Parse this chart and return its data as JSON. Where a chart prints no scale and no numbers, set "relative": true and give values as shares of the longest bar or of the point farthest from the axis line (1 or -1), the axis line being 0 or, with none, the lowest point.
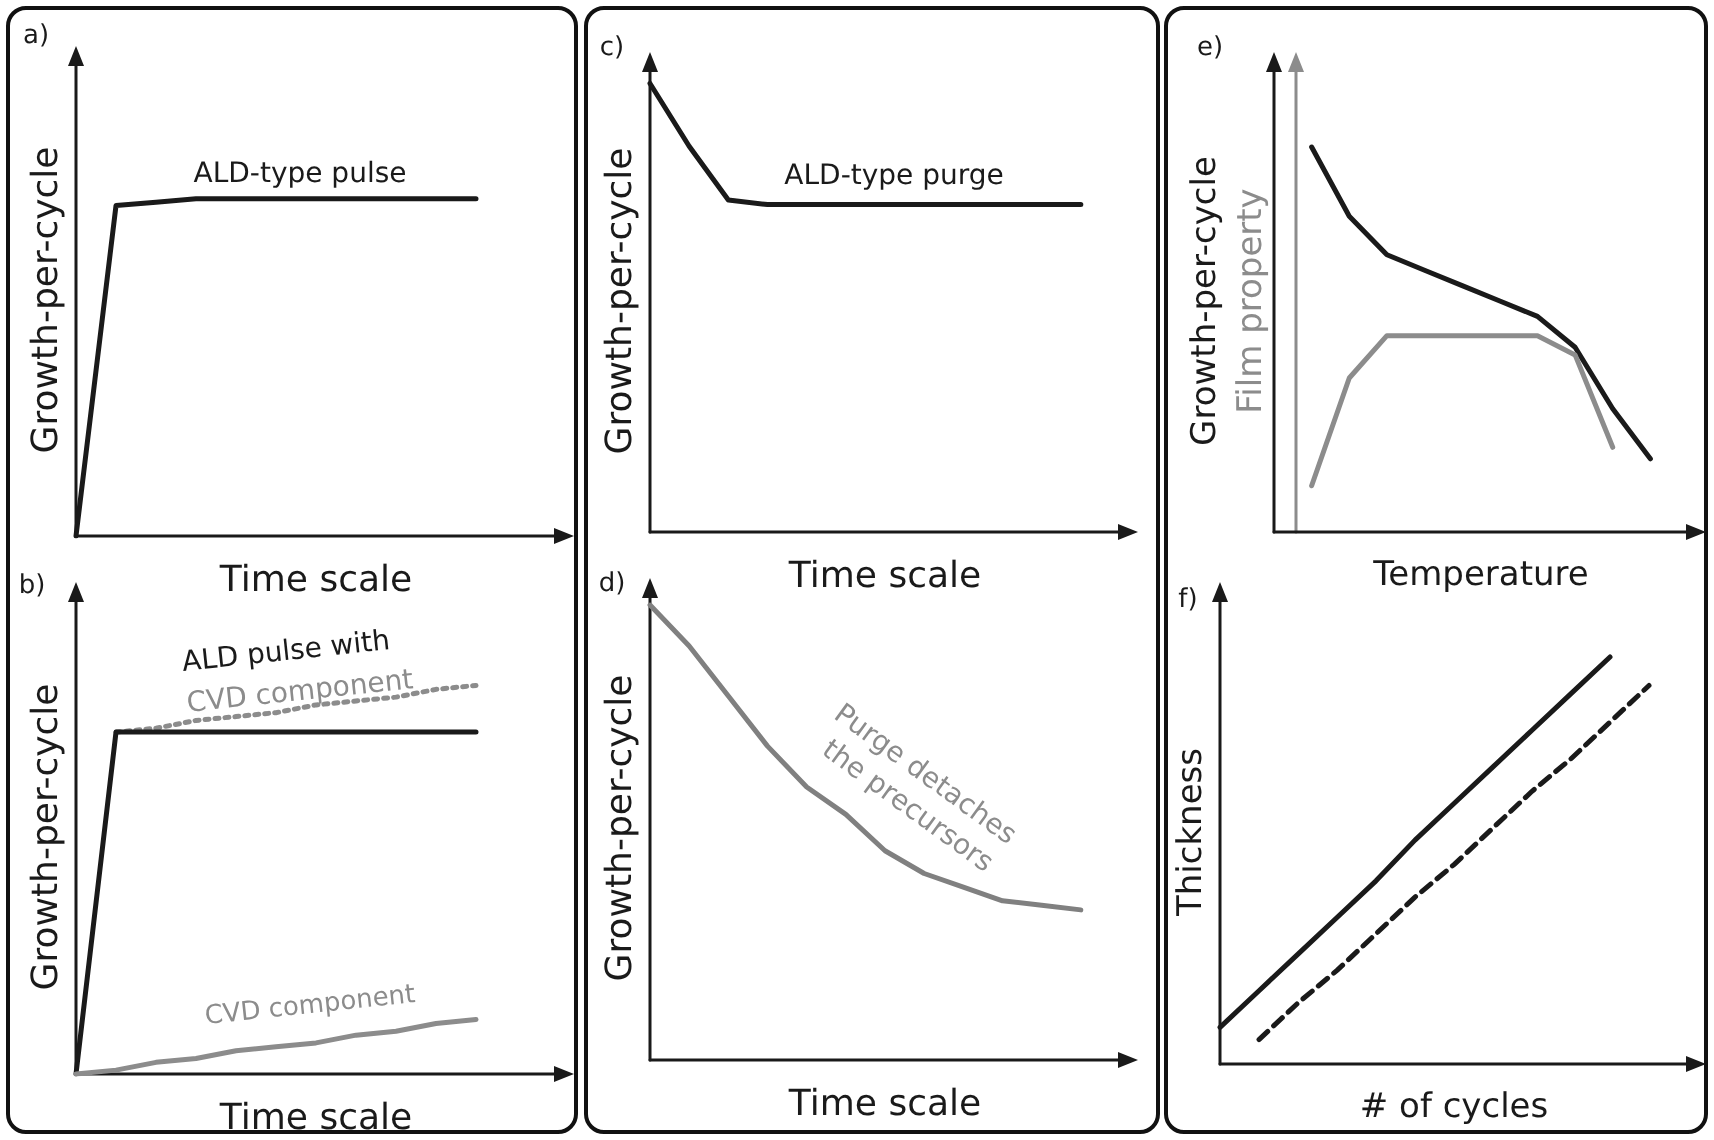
{
  "chart_data": [
    {
      "type": "line",
      "relative": true,
      "xlabel": "Time scale",
      "ylabel": "Growth-per-cycle",
      "marker": "none",
      "annotations": [
        "a)",
        "ALD-type pulse"
      ],
      "categories": [
        null,
        null,
        null,
        null,
        null,
        null,
        null,
        null,
        null,
        null,
        null,
        null,
        null
      ],
      "series": [
        {
          "color": "#1a1a1a",
          "values": [
            0,
            0.98,
            0.99,
            1,
            1,
            1,
            1,
            1,
            1,
            1,
            1,
            null,
            null
          ]
        }
      ]
    },
    {
      "type": "line",
      "relative": true,
      "xlabel": "Time scale",
      "ylabel": "Growth-per-cycle",
      "marker": "none",
      "annotations": [
        "b)",
        "ALD pulse with",
        "CVD component",
        "CVD component"
      ],
      "categories": [
        null,
        null,
        null,
        null,
        null,
        null,
        null,
        null,
        null,
        null,
        null,
        null,
        null
      ],
      "series": [
        {
          "color": "#8c8c8c",
          "line_style": "dotted",
          "values": [
            null,
            0.88,
            0.89,
            0.91,
            0.92,
            0.93,
            0.95,
            0.96,
            0.97,
            0.99,
            1.0,
            null,
            null
          ]
        },
        {
          "color": "#1a1a1a",
          "values": [
            0,
            0.88,
            0.88,
            0.88,
            0.88,
            0.88,
            0.88,
            0.88,
            0.88,
            0.88,
            0.88,
            null,
            null
          ]
        },
        {
          "color": "#8c8c8c",
          "values": [
            0,
            0.01,
            0.03,
            0.04,
            0.06,
            0.07,
            0.08,
            0.1,
            0.11,
            0.13,
            0.14,
            null,
            null
          ]
        }
      ]
    },
    {
      "type": "line",
      "relative": true,
      "xlabel": "Time scale",
      "ylabel": "Growth-per-cycle",
      "marker": "none",
      "annotations": [
        "c)",
        "ALD-type purge"
      ],
      "categories": [
        null,
        null,
        null,
        null,
        null,
        null,
        null,
        null,
        null,
        null,
        null,
        null,
        null
      ],
      "series": [
        {
          "color": "#1a1a1a",
          "values": [
            1,
            0.86,
            0.74,
            0.73,
            0.73,
            0.73,
            0.73,
            0.73,
            0.73,
            0.73,
            0.73,
            0.73,
            null
          ]
        }
      ]
    },
    {
      "type": "line",
      "relative": true,
      "xlabel": "Time scale",
      "ylabel": "Growth-per-cycle",
      "marker": "none",
      "annotations": [
        "d)",
        "Purge detaches the precursors"
      ],
      "categories": [
        null,
        null,
        null,
        null,
        null,
        null,
        null,
        null,
        null,
        null,
        null,
        null,
        null
      ],
      "series": [
        {
          "color": "#808080",
          "values": [
            1,
            0.91,
            0.8,
            0.69,
            0.6,
            0.54,
            0.46,
            0.41,
            0.38,
            0.35,
            0.34,
            0.33,
            null
          ]
        }
      ]
    },
    {
      "type": "line",
      "relative": true,
      "xlabel": "Temperature",
      "ylabel": "Growth-per-cycle",
      "y2label": "Film property",
      "marker": "none",
      "annotations": [
        "e)"
      ],
      "categories": [
        null,
        null,
        null,
        null,
        null,
        null,
        null,
        null,
        null,
        null,
        null,
        null
      ],
      "series": [
        {
          "color": "#1a1a1a",
          "values": [
            null,
            1,
            0.82,
            0.72,
            0.68,
            0.64,
            0.6,
            0.56,
            0.48,
            0.32,
            0.19,
            null
          ]
        },
        {
          "color": "#8c8c8c",
          "values": [
            null,
            0.12,
            0.4,
            0.51,
            0.51,
            0.51,
            0.51,
            0.51,
            0.46,
            0.22,
            null,
            null
          ]
        }
      ]
    },
    {
      "type": "line",
      "relative": true,
      "xlabel": "# of cycles",
      "ylabel": "Thickness",
      "marker": "none",
      "annotations": [
        "f)"
      ],
      "categories": [
        null,
        null,
        null,
        null,
        null,
        null,
        null,
        null,
        null,
        null,
        null,
        null,
        null
      ],
      "series": [
        {
          "color": "#1a1a1a",
          "values": [
            0.09,
            0.18,
            0.27,
            0.36,
            0.45,
            0.55,
            0.64,
            0.73,
            0.82,
            0.91,
            1.0,
            null,
            null
          ]
        },
        {
          "color": "#1a1a1a",
          "line_style": "dashed",
          "values": [
            null,
            0.06,
            0.15,
            0.23,
            0.32,
            0.41,
            0.49,
            0.58,
            0.67,
            0.75,
            0.84,
            0.93,
            null
          ]
        }
      ]
    }
  ]
}
